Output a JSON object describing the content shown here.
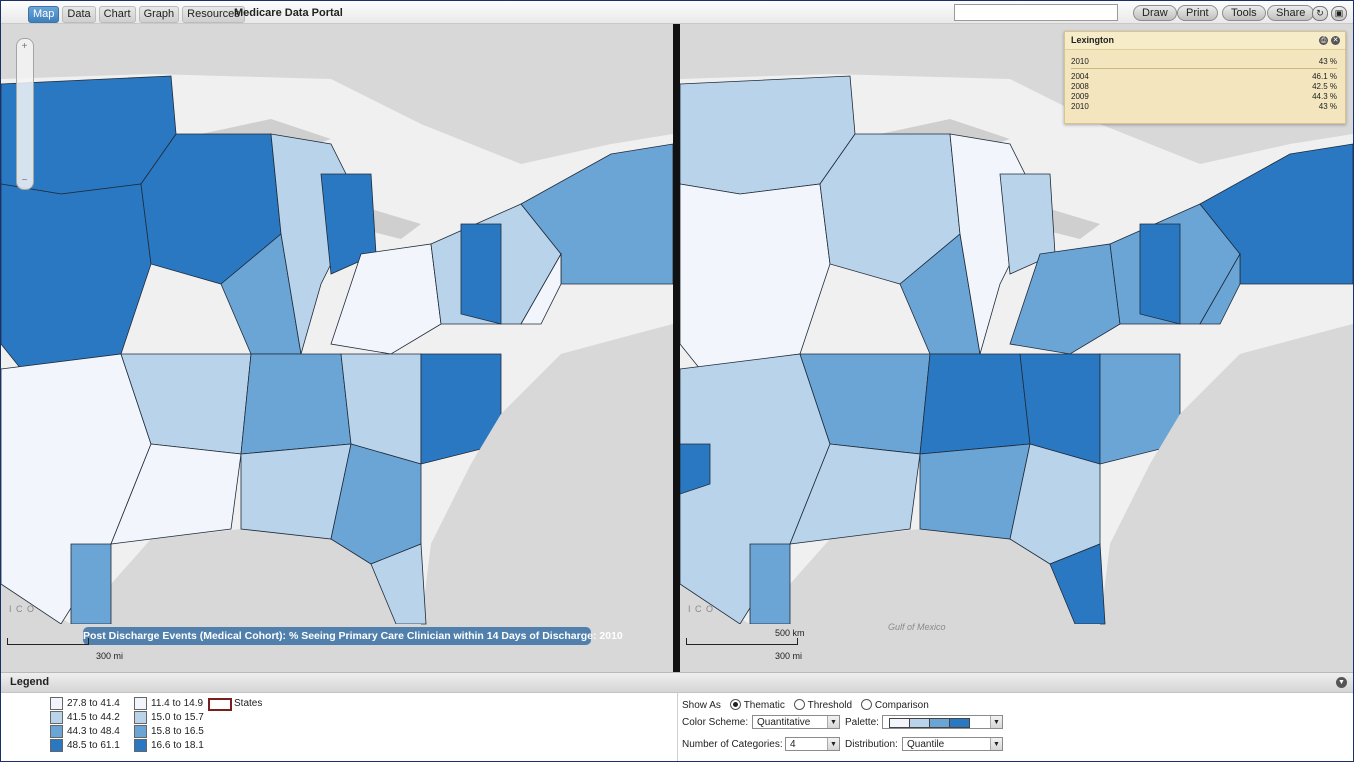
{
  "topbar": {
    "tabs": [
      "Map",
      "Data",
      "Chart",
      "Graph",
      "Resources"
    ],
    "active_tab": "Map",
    "app_title": "Medicare Data Portal",
    "search_value": "",
    "buttons": {
      "draw": "Draw",
      "print": "Print",
      "tools": "Tools",
      "share": "Share"
    },
    "icons": [
      "refresh-icon",
      "window-icon"
    ]
  },
  "left_map": {
    "banner": "Post Discharge Events (Medical Cohort): % Seeing Primary Care Clinician within 14 Days of Discharge: 2010",
    "scale_label": "300 mi",
    "edge_label": "I C O"
  },
  "right_map": {
    "scale_label_km": "500 km",
    "scale_label_mi": "300 mi",
    "gulf_label": "Gulf of Mexico",
    "edge_label": "I C O"
  },
  "popup": {
    "title": "Lexington",
    "current": {
      "year": "2010",
      "value": "43 %"
    },
    "history": [
      {
        "year": "2004",
        "value": "46.1 %"
      },
      {
        "year": "2008",
        "value": "42.5 %"
      },
      {
        "year": "2009",
        "value": "44.3 %"
      },
      {
        "year": "2010",
        "value": "43 %"
      }
    ]
  },
  "legend": {
    "title": "Legend",
    "colors": [
      "#f2f6fc",
      "#b8d3ea",
      "#6aa5d6",
      "#2b78c2"
    ],
    "left_classes": [
      "27.8 to 41.4",
      "41.5 to 44.2",
      "44.3 to 48.4",
      "48.5 to 61.1"
    ],
    "right_classes": [
      "11.4 to 14.9",
      "15.0 to 15.7",
      "15.8 to 16.5",
      "16.6 to 18.1"
    ],
    "states_label": "States",
    "states_color": "#7a1d1d"
  },
  "controls": {
    "show_as_label": "Show As",
    "show_as_options": [
      "Thematic",
      "Threshold",
      "Comparison"
    ],
    "show_as_selected": "Thematic",
    "color_scheme_label": "Color Scheme:",
    "color_scheme_value": "Quantitative",
    "palette_label": "Palette:",
    "num_categories_label": "Number of Categories:",
    "num_categories_value": "4",
    "distribution_label": "Distribution:",
    "distribution_value": "Quantile"
  }
}
